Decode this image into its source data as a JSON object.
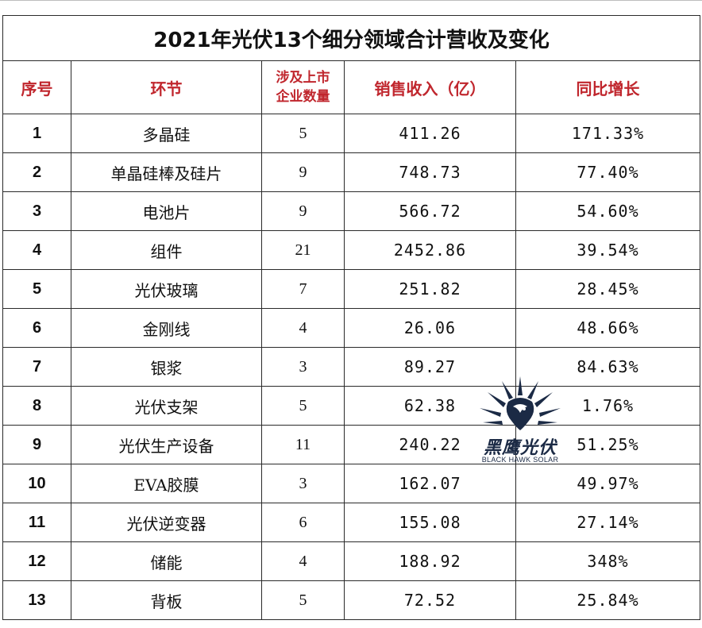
{
  "title": "2021年光伏13个细分领域合计营收及变化",
  "headers": {
    "index": "序号",
    "segment": "环节",
    "companies_line1": "涉及上市",
    "companies_line2": "企业数量",
    "revenue": "销售收入（亿）",
    "growth": "同比增长"
  },
  "rows": [
    {
      "index": "1",
      "segment": "多晶硅",
      "companies": "5",
      "revenue": "411.26",
      "growth": "171.33%"
    },
    {
      "index": "2",
      "segment": "单晶硅棒及硅片",
      "companies": "9",
      "revenue": "748.73",
      "growth": "77.40%"
    },
    {
      "index": "3",
      "segment": "电池片",
      "companies": "9",
      "revenue": "566.72",
      "growth": "54.60%"
    },
    {
      "index": "4",
      "segment": "组件",
      "companies": "21",
      "revenue": "2452.86",
      "growth": "39.54%"
    },
    {
      "index": "5",
      "segment": "光伏玻璃",
      "companies": "7",
      "revenue": "251.82",
      "growth": "28.45%"
    },
    {
      "index": "6",
      "segment": "金刚线",
      "companies": "4",
      "revenue": "26.06",
      "growth": "48.66%"
    },
    {
      "index": "7",
      "segment": "银浆",
      "companies": "3",
      "revenue": "89.27",
      "growth": "84.63%"
    },
    {
      "index": "8",
      "segment": "光伏支架",
      "companies": "5",
      "revenue": "62.38",
      "growth": "1.76%"
    },
    {
      "index": "9",
      "segment": "光伏生产设备",
      "companies": "11",
      "revenue": "240.22",
      "growth": "51.25%"
    },
    {
      "index": "10",
      "segment": "EVA胶膜",
      "companies": "3",
      "revenue": "162.07",
      "growth": "49.97%"
    },
    {
      "index": "11",
      "segment": "光伏逆变器",
      "companies": "6",
      "revenue": "155.08",
      "growth": "27.14%"
    },
    {
      "index": "12",
      "segment": "储能",
      "companies": "4",
      "revenue": "188.92",
      "growth": "348%"
    },
    {
      "index": "13",
      "segment": "背板",
      "companies": "5",
      "revenue": "72.52",
      "growth": "25.84%"
    }
  ],
  "highlights": {
    "color": "#c0262d",
    "revenue_rows": [
      "4",
      "12"
    ],
    "growth_rows": [
      "1",
      "8",
      "12"
    ]
  },
  "watermark": {
    "name_cn": "黑鹰光伏",
    "name_en": "BLACK HAWK SOLAR",
    "icon": "hawk-sunburst-logo"
  }
}
